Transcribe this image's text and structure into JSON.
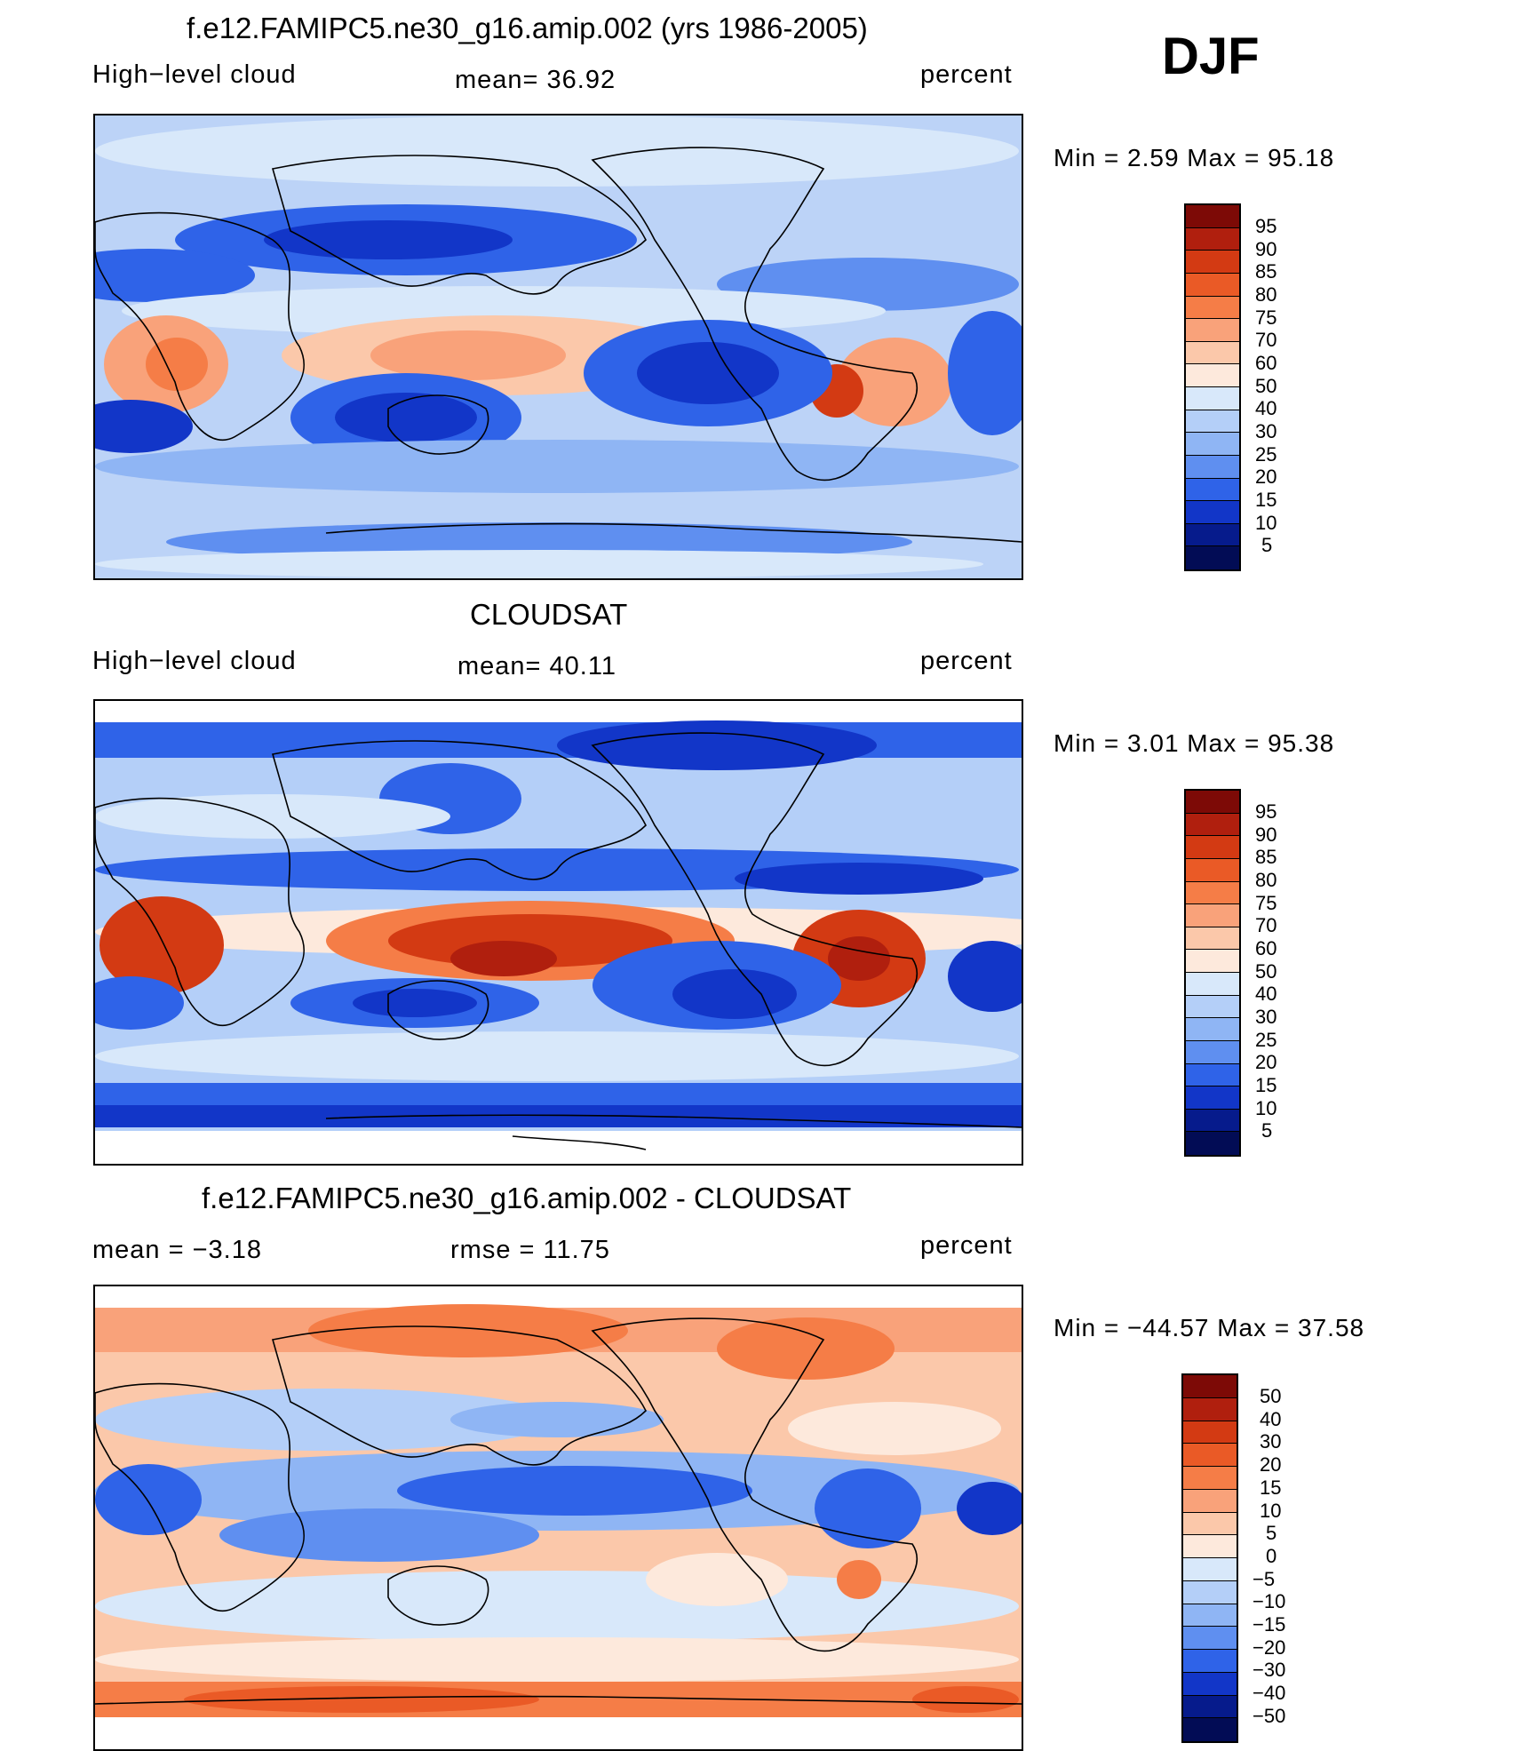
{
  "season": "DJF",
  "panels": [
    {
      "title": "f.e12.FAMIPC5.ne30_g16.amip.002 (yrs 1986-2005)",
      "left": "High−level cloud",
      "center": "mean=   36.92",
      "right": "percent",
      "minmax": "Min  =     2.59  Max  =    95.18",
      "colorbar": {
        "labels": [
          "95",
          "90",
          "85",
          "80",
          "75",
          "70",
          "60",
          "50",
          "40",
          "30",
          "25",
          "20",
          "15",
          "10",
          "5"
        ],
        "colors": [
          "#7d0a06",
          "#b01f0e",
          "#d33a13",
          "#ea5a26",
          "#f57d47",
          "#f9a27a",
          "#fbc8aa",
          "#fde9dc",
          "#d8e8fa",
          "#b4cff8",
          "#8fb5f4",
          "#5f8ff0",
          "#2f63e8",
          "#1236c8",
          "#061b8c",
          "#020c55"
        ]
      }
    },
    {
      "title": "CLOUDSAT",
      "left": "High−level cloud",
      "center": "mean=   40.11",
      "right": "percent",
      "minmax": "Min  =     3.01  Max  =    95.38",
      "colorbar": {
        "labels": [
          "95",
          "90",
          "85",
          "80",
          "75",
          "70",
          "60",
          "50",
          "40",
          "30",
          "25",
          "20",
          "15",
          "10",
          "5"
        ],
        "colors": [
          "#7d0a06",
          "#b01f0e",
          "#d33a13",
          "#ea5a26",
          "#f57d47",
          "#f9a27a",
          "#fbc8aa",
          "#fde9dc",
          "#d8e8fa",
          "#b4cff8",
          "#8fb5f4",
          "#5f8ff0",
          "#2f63e8",
          "#1236c8",
          "#061b8c",
          "#020c55"
        ]
      }
    },
    {
      "title": "f.e12.FAMIPC5.ne30_g16.amip.002 - CLOUDSAT",
      "left": "mean  =    −3.18",
      "center": "rmse  =    11.75",
      "right": "percent",
      "minmax": "Min  = −44.57  Max  =    37.58",
      "colorbar": {
        "labels": [
          "50",
          "40",
          "30",
          "20",
          "15",
          "10",
          "5",
          "0",
          "−5",
          "−10",
          "−15",
          "−20",
          "−30",
          "−40",
          "−50"
        ],
        "colors": [
          "#7d0a06",
          "#b01f0e",
          "#d33a13",
          "#ea5a26",
          "#f57d47",
          "#f9a27a",
          "#fbc8aa",
          "#fde9dc",
          "#d8e8fa",
          "#b4cff8",
          "#8fb5f4",
          "#5f8ff0",
          "#2f63e8",
          "#1236c8",
          "#061b8c",
          "#020c55"
        ]
      }
    }
  ]
}
